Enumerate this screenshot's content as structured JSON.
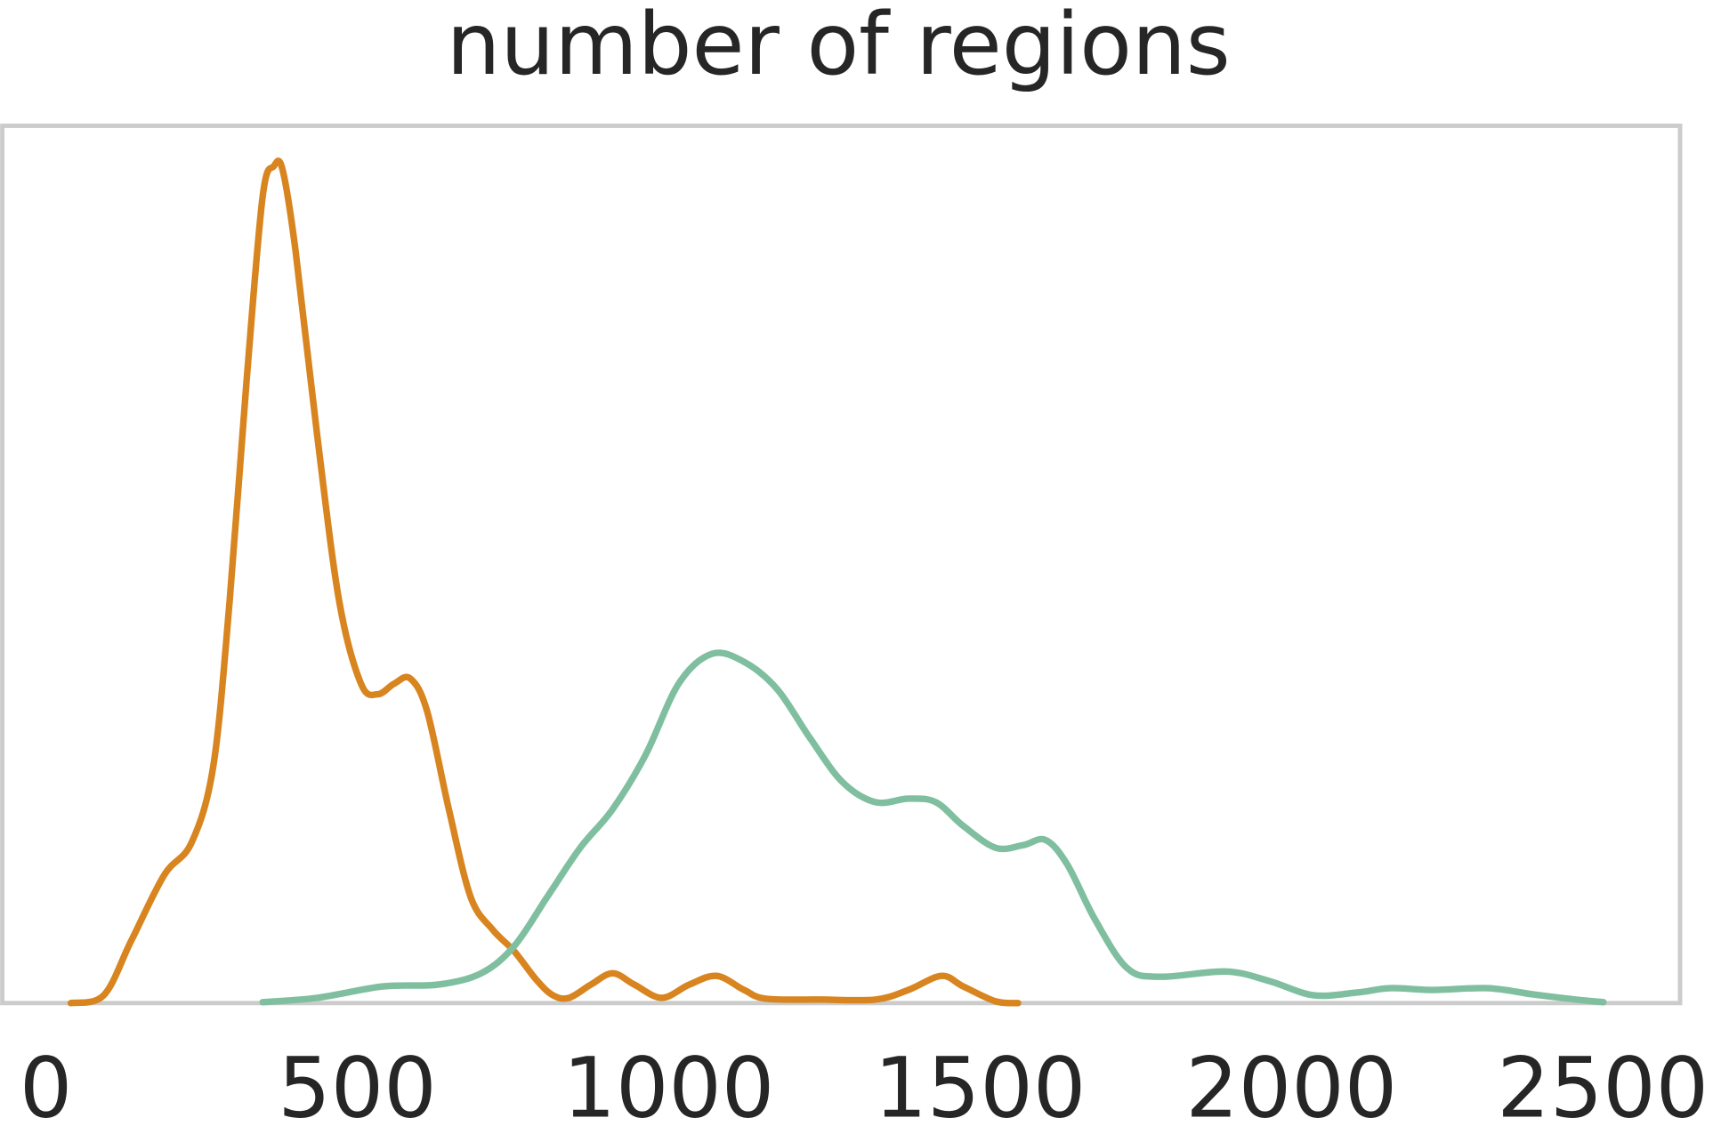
{
  "chart_data": {
    "type": "line",
    "title": "number of regions",
    "xlim": [
      -70,
      2624
    ],
    "xticks": [
      0,
      500,
      1000,
      1500,
      2000,
      2500
    ],
    "ylim": [
      0,
      100
    ],
    "grid": false,
    "series": [
      {
        "color": "#d8841f",
        "x": [
          40,
          93,
          137,
          190,
          234,
          269,
          295,
          322,
          348,
          366,
          380,
          401,
          436,
          471,
          506,
          533,
          559,
          585,
          612,
          647,
          682,
          717,
          752,
          787,
          814,
          840,
          875,
          910,
          945,
          989,
          1033,
          1077,
          1121,
          1156,
          1244,
          1332,
          1385,
          1438,
          1473,
          1525,
          1561
        ],
        "values": [
          0,
          0.9,
          7.1,
          14.6,
          18.3,
          27.1,
          45.8,
          70.7,
          91.9,
          95.4,
          95.0,
          85.7,
          64.5,
          45.8,
          36.4,
          35.2,
          36.4,
          37.0,
          33.3,
          22.1,
          12.1,
          8.4,
          5.9,
          2.7,
          0.9,
          0.6,
          2.1,
          3.4,
          2.1,
          0.6,
          2.1,
          3.1,
          1.5,
          0.5,
          0.4,
          0.4,
          1.5,
          3.1,
          1.9,
          0.2,
          0
        ]
      },
      {
        "color": "#7fbfa0",
        "x": [
          348,
          436,
          541,
          629,
          699,
          752,
          805,
          858,
          910,
          963,
          1016,
          1069,
          1121,
          1174,
          1227,
          1279,
          1332,
          1385,
          1429,
          1473,
          1525,
          1569,
          1605,
          1640,
          1684,
          1736,
          1789,
          1895,
          1965,
          2035,
          2105,
          2158,
          2228,
          2316,
          2387,
          2457,
          2501
        ],
        "values": [
          0.1,
          0.6,
          1.9,
          2.1,
          3.4,
          6.5,
          12.1,
          17.7,
          22.1,
          28.3,
          36.4,
          39.8,
          38.9,
          35.8,
          30.2,
          25.2,
          22.9,
          23.3,
          22.9,
          20.2,
          17.7,
          18.0,
          18.6,
          15.8,
          9.6,
          4.0,
          3.0,
          3.6,
          2.5,
          0.9,
          1.2,
          1.7,
          1.5,
          1.7,
          1.0,
          0.4,
          0.1
        ]
      }
    ]
  }
}
